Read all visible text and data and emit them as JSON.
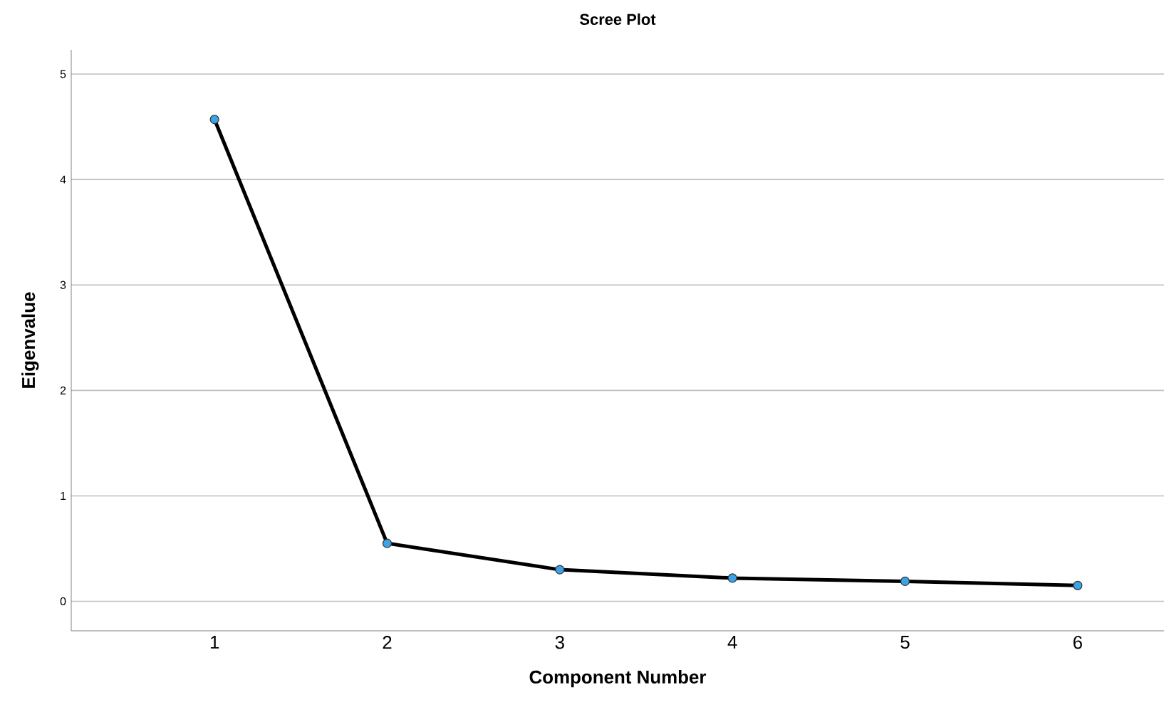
{
  "chart_data": {
    "type": "line",
    "title": "Scree Plot",
    "xlabel": "Component Number",
    "ylabel": "Eigenvalue",
    "categories": [
      "1",
      "2",
      "3",
      "4",
      "5",
      "6"
    ],
    "series": [
      {
        "color": "#000000",
        "values": [
          4.57,
          0.55,
          0.3,
          0.22,
          0.19,
          0.15
        ]
      }
    ],
    "ylim": [
      -0.28,
      5.23
    ],
    "yticks": [
      0,
      1,
      2,
      3,
      4,
      5
    ],
    "grid": "y",
    "marker": "circle",
    "line_style": "solid"
  }
}
